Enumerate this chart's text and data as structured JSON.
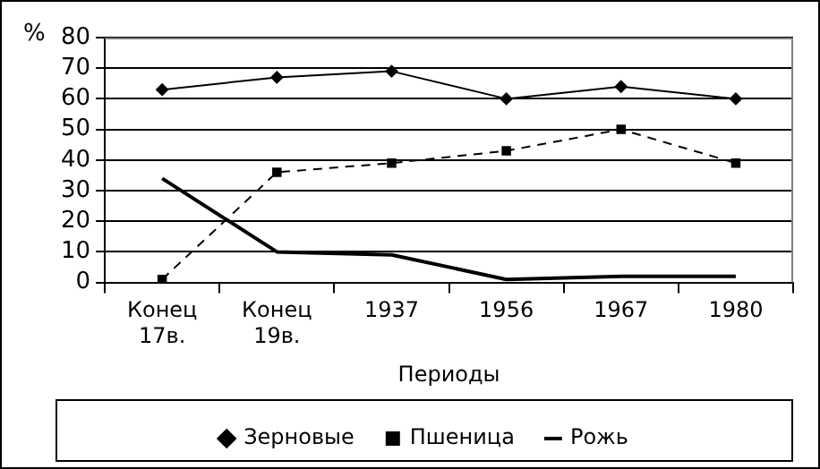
{
  "chart_data": {
    "type": "line",
    "xlabel": "Периоды",
    "ylabel": "%",
    "categories": [
      "Конец\n17в.",
      "Конец\n19в.",
      "1937",
      "1956",
      "1967",
      "1980"
    ],
    "series": [
      {
        "name": "Зерновые",
        "color": "#000000",
        "values": [
          63,
          67,
          69,
          60,
          64,
          60
        ],
        "marker": "diamond",
        "line_style": "solid"
      },
      {
        "name": "Пшеница",
        "color": "#000000",
        "values": [
          1,
          36,
          39,
          43,
          50,
          39
        ],
        "marker": "square",
        "line_style": "dashed"
      },
      {
        "name": "Рожь",
        "color": "#000000",
        "values": [
          34,
          10,
          9,
          1,
          2,
          2
        ],
        "marker": "none",
        "line_style": "solid"
      }
    ],
    "ylim": [
      0,
      80
    ],
    "yticks": [
      0,
      10,
      20,
      30,
      40,
      50,
      60,
      70,
      80
    ],
    "grid": "y",
    "legend": "bottom"
  }
}
